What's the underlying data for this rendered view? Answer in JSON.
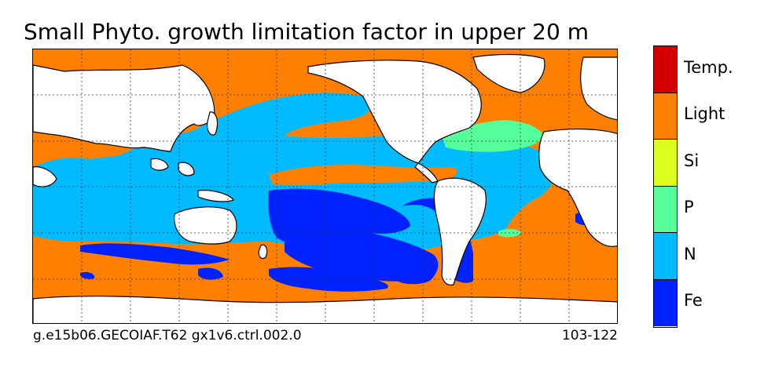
{
  "title": "Small Phyto. growth limitation factor in upper 20 m",
  "footer": {
    "run_id": "g.e15b06.GECOIAF.T62 gx1v6.ctrl.002.0",
    "years": "103-122"
  },
  "colorbar": {
    "categories": [
      {
        "label": "Temp.",
        "color": "#d40000"
      },
      {
        "label": "Light",
        "color": "#ff8000"
      },
      {
        "label": "Si",
        "color": "#dcff1f"
      },
      {
        "label": "P",
        "color": "#55ff99"
      },
      {
        "label": "N",
        "color": "#00bbff"
      },
      {
        "label": "Fe",
        "color": "#0022ff"
      }
    ]
  },
  "map": {
    "land_color": "#ffffff",
    "coastline_color": "#000000",
    "grid": "dotted",
    "projection": "cylindrical"
  }
}
